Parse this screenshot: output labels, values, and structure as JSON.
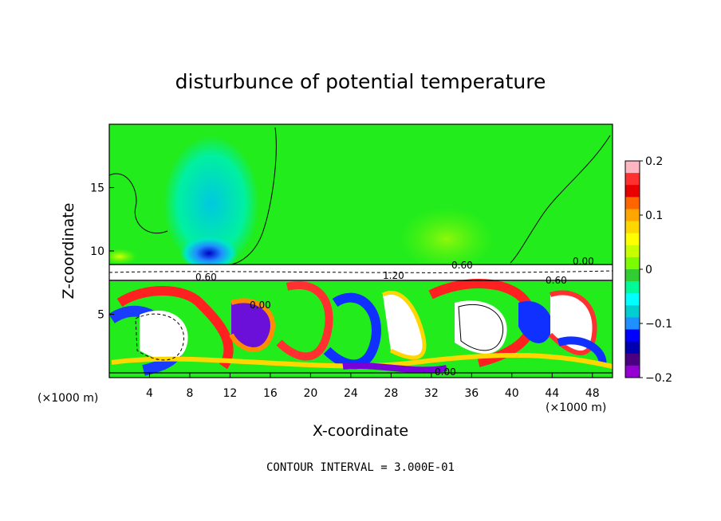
{
  "chart_data": {
    "type": "heatmap",
    "title": "disturbunce of potential temperature",
    "xlabel": "X-coordinate",
    "ylabel": "Z-coordinate",
    "x_unit": "(×1000 m)",
    "xlim": [
      0,
      50
    ],
    "ylim": [
      0,
      20
    ],
    "x_ticks": [
      4,
      8,
      12,
      16,
      20,
      24,
      28,
      32,
      36,
      40,
      44,
      48
    ],
    "y_ticks": [
      5,
      10,
      15
    ],
    "colorbar": {
      "range": [
        -0.2,
        0.2
      ],
      "tick_values": [
        0.2,
        0.1,
        0,
        -0.1,
        -0.2
      ],
      "tick_labels": [
        "0.2",
        "0.1",
        "0",
        "−0.1",
        "−0.2"
      ],
      "colors": [
        "#ffb6c1",
        "#ff3030",
        "#e80000",
        "#ff6600",
        "#ffa500",
        "#ffd700",
        "#ffff00",
        "#c8ff00",
        "#7cfc00",
        "#32cd32",
        "#00fa9a",
        "#00ffff",
        "#00ced1",
        "#1e90ff",
        "#0000ff",
        "#0000b0",
        "#4b0082",
        "#9400d3"
      ]
    },
    "contour_labels": [
      "0.00",
      "0.60",
      "1.20",
      "0.60",
      "0.00",
      "0.00",
      "0.60",
      "0.00",
      "0.00",
      "0.00"
    ],
    "note": "CONTOUR INTERVAL = 3.000E-01"
  }
}
